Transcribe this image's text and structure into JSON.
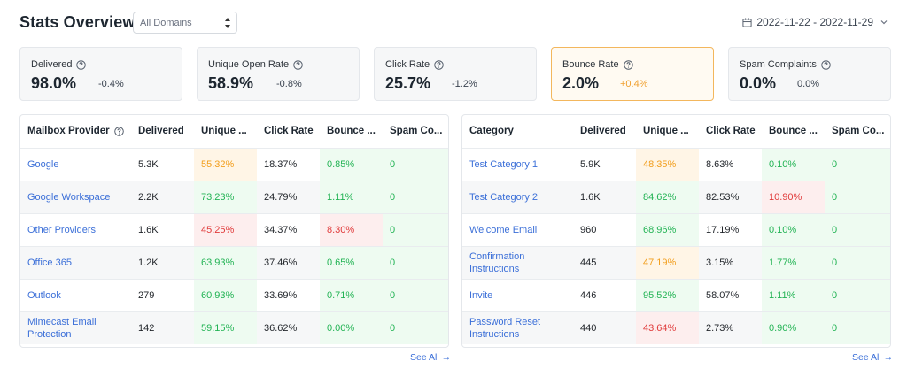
{
  "header": {
    "title": "Stats Overview",
    "domain_select": "All Domains",
    "date_range": "2022-11-22 - 2022-11-29"
  },
  "cards": [
    {
      "label": "Delivered",
      "value": "98.0%",
      "delta": "-0.4%"
    },
    {
      "label": "Unique Open Rate",
      "value": "58.9%",
      "delta": "-0.8%"
    },
    {
      "label": "Click Rate",
      "value": "25.7%",
      "delta": "-1.2%"
    },
    {
      "label": "Bounce Rate",
      "value": "2.0%",
      "delta": "+0.4%"
    },
    {
      "label": "Spam Complaints",
      "value": "0.0%",
      "delta": "0.0%"
    }
  ],
  "mailbox_table": {
    "headers": [
      "Mailbox Provider",
      "Delivered",
      "Unique ...",
      "Click Rate",
      "Bounce ...",
      "Spam Co..."
    ],
    "rows": [
      [
        "Google",
        "5.3K",
        "55.32%",
        "18.37%",
        "0.85%",
        "0"
      ],
      [
        "Google Workspace",
        "2.2K",
        "73.23%",
        "24.79%",
        "1.11%",
        "0"
      ],
      [
        "Other Providers",
        "1.6K",
        "45.25%",
        "34.37%",
        "8.30%",
        "0"
      ],
      [
        "Office 365",
        "1.2K",
        "63.93%",
        "37.46%",
        "0.65%",
        "0"
      ],
      [
        "Outlook",
        "279",
        "60.93%",
        "33.69%",
        "0.71%",
        "0"
      ],
      [
        "Mimecast Email Protection",
        "142",
        "59.15%",
        "36.62%",
        "0.00%",
        "0"
      ]
    ],
    "see_all": "See All →"
  },
  "category_table": {
    "headers": [
      "Category",
      "Delivered",
      "Unique ...",
      "Click Rate",
      "Bounce ...",
      "Spam Co..."
    ],
    "rows": [
      [
        "Test Category 1",
        "5.9K",
        "48.35%",
        "8.63%",
        "0.10%",
        "0"
      ],
      [
        "Test Category 2",
        "1.6K",
        "84.62%",
        "82.53%",
        "10.90%",
        "0"
      ],
      [
        "Welcome Email",
        "960",
        "68.96%",
        "17.19%",
        "0.10%",
        "0"
      ],
      [
        "Confirmation Instructions",
        "445",
        "47.19%",
        "3.15%",
        "1.77%",
        "0"
      ],
      [
        "Invite",
        "446",
        "95.52%",
        "58.07%",
        "1.11%",
        "0"
      ],
      [
        "Password Reset Instructions",
        "440",
        "43.64%",
        "2.73%",
        "0.90%",
        "0"
      ]
    ],
    "see_all": "See All →"
  },
  "colors": {
    "link": "#3b6fd8",
    "good": "#22b354",
    "warn": "#f29e1d",
    "bad": "#e03a3a",
    "active_border": "#f3b75d"
  },
  "icons": [
    "sort-arrows-icon",
    "calendar-icon",
    "chevron-down-icon",
    "help-circle-icon"
  ]
}
